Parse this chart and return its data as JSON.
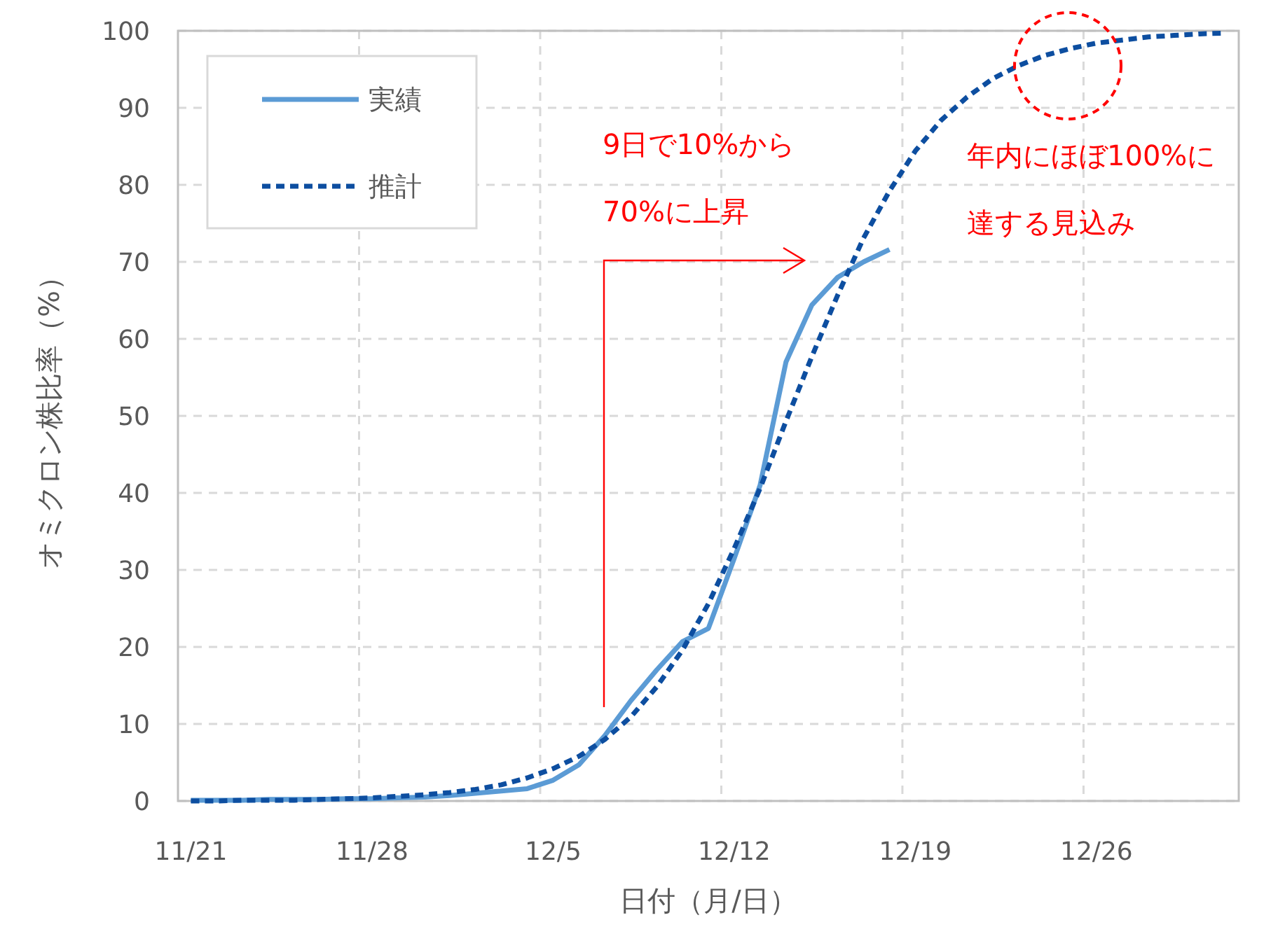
{
  "chart_data": {
    "type": "line",
    "xlabel": "日付（月/日）",
    "ylabel": "オミクロン株比率（%）",
    "categories": [
      "11/21",
      null,
      null,
      null,
      null,
      null,
      null,
      "11/28",
      null,
      null,
      null,
      null,
      null,
      null,
      "12/5",
      null,
      null,
      null,
      null,
      null,
      null,
      "12/12",
      null,
      null,
      null,
      null,
      null,
      null,
      "12/19",
      null,
      null,
      null,
      null,
      null,
      null,
      "12/26",
      null,
      null,
      null,
      null,
      null
    ],
    "series": [
      {
        "name": "実績",
        "color": "#5b9bd5",
        "line_style": "solid",
        "values": [
          0.1,
          0.1,
          0.1,
          0.2,
          0.2,
          0.2,
          0.3,
          0.3,
          0.4,
          0.5,
          0.7,
          1.0,
          1.3,
          1.6,
          2.7,
          4.7,
          8.5,
          13,
          17,
          20.7,
          22.4,
          31.5,
          41,
          57,
          64.4,
          68,
          70,
          71.6,
          null,
          null,
          null,
          null,
          null,
          null,
          null,
          null,
          null,
          null,
          null,
          null,
          null
        ]
      },
      {
        "name": "推計",
        "color": "#0d4ea0",
        "line_style": "dashed",
        "values": [
          0,
          0,
          0.1,
          0.1,
          0.1,
          0.2,
          0.3,
          0.4,
          0.6,
          0.8,
          1.1,
          1.5,
          2.1,
          3.0,
          4.2,
          5.8,
          8.0,
          10.9,
          14.8,
          19.6,
          25.6,
          32.8,
          40.6,
          49.3,
          57.7,
          65.7,
          73.1,
          79.2,
          84.4,
          88.4,
          91.4,
          93.8,
          95.5,
          96.8,
          97.7,
          98.4,
          98.8,
          99.2,
          99.4,
          99.6,
          99.7
        ]
      }
    ],
    "ylim": [
      0,
      100
    ],
    "yticks": [
      0,
      10,
      20,
      30,
      40,
      50,
      60,
      70,
      80,
      90,
      100
    ],
    "grid": true,
    "legend": "top left",
    "marker": "none",
    "annotations": [
      "9日で10%から",
      "70%に上昇",
      "年内にほぼ100%に",
      "達する見込み"
    ]
  }
}
